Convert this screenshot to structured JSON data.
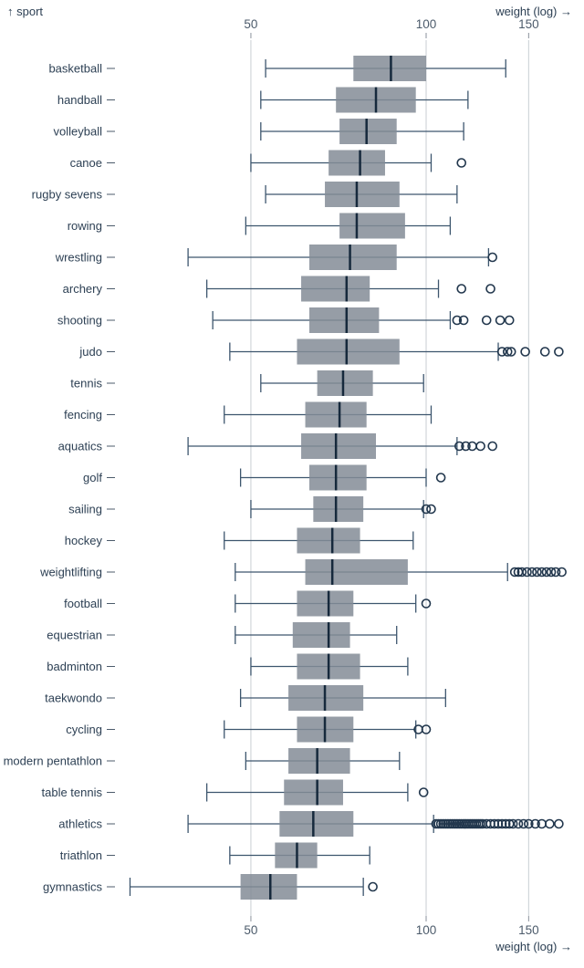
{
  "chart": {
    "y_axis_label": "↑ sport",
    "x_axis_label_top": "weight (log) →",
    "x_axis_label_bottom": "weight (log) →"
  },
  "colors": {
    "box_fill": "#848c96",
    "median": "#16293c",
    "whisker": "#3d566e",
    "outlier": "#22374d",
    "grid": "#c9ced3",
    "tick_mark": "#8a929b",
    "tick_text": "#4c5b6b",
    "label_text": "#2d4054"
  },
  "chart_data": {
    "type": "boxplot",
    "orientation": "horizontal",
    "xlabel": "weight (log)",
    "ylabel": "sport",
    "x_scale": "log",
    "x_ticks": [
      50,
      100,
      150
    ],
    "x_range_approx": [
      30,
      175
    ],
    "grid": true,
    "series": [
      {
        "label": "basketball",
        "whisker_min": 53,
        "q1": 75,
        "median": 87,
        "q3": 100,
        "whisker_max": 137,
        "outliers": []
      },
      {
        "label": "handball",
        "whisker_min": 52,
        "q1": 70,
        "median": 82,
        "q3": 96,
        "whisker_max": 118,
        "outliers": []
      },
      {
        "label": "volleyball",
        "whisker_min": 52,
        "q1": 71,
        "median": 79,
        "q3": 89,
        "whisker_max": 116,
        "outliers": []
      },
      {
        "label": "canoe",
        "whisker_min": 50,
        "q1": 68,
        "median": 77,
        "q3": 85,
        "whisker_max": 102,
        "outliers": [
          115
        ]
      },
      {
        "label": "rugby sevens",
        "whisker_min": 53,
        "q1": 67,
        "median": 76,
        "q3": 90,
        "whisker_max": 113,
        "outliers": []
      },
      {
        "label": "rowing",
        "whisker_min": 49,
        "q1": 71,
        "median": 76,
        "q3": 92,
        "whisker_max": 110,
        "outliers": []
      },
      {
        "label": "wrestling",
        "whisker_min": 39,
        "q1": 63,
        "median": 74,
        "q3": 89,
        "whisker_max": 128,
        "outliers": [
          130
        ]
      },
      {
        "label": "archery",
        "whisker_min": 42,
        "q1": 61,
        "median": 73,
        "q3": 80,
        "whisker_max": 105,
        "outliers": [
          115,
          129
        ]
      },
      {
        "label": "shooting",
        "whisker_min": 43,
        "q1": 63,
        "median": 73,
        "q3": 83,
        "whisker_max": 110,
        "outliers": [
          113,
          116,
          127,
          134,
          139
        ]
      },
      {
        "label": "judo",
        "whisker_min": 46,
        "q1": 60,
        "median": 73,
        "q3": 90,
        "whisker_max": 133,
        "outliers": [
          135,
          138,
          140,
          148,
          160,
          169
        ]
      },
      {
        "label": "tennis",
        "whisker_min": 52,
        "q1": 65,
        "median": 72,
        "q3": 81,
        "whisker_max": 99,
        "outliers": []
      },
      {
        "label": "fencing",
        "whisker_min": 45,
        "q1": 62,
        "median": 71,
        "q3": 79,
        "whisker_max": 102,
        "outliers": []
      },
      {
        "label": "aquatics",
        "whisker_min": 39,
        "q1": 61,
        "median": 70,
        "q3": 82,
        "whisker_max": 113,
        "outliers": [
          114,
          117,
          120,
          124,
          130
        ]
      },
      {
        "label": "golf",
        "whisker_min": 48,
        "q1": 63,
        "median": 70,
        "q3": 79,
        "whisker_max": 100,
        "outliers": [
          106
        ]
      },
      {
        "label": "sailing",
        "whisker_min": 50,
        "q1": 64,
        "median": 70,
        "q3": 78,
        "whisker_max": 99,
        "outliers": [
          100,
          102
        ]
      },
      {
        "label": "hockey",
        "whisker_min": 45,
        "q1": 60,
        "median": 69,
        "q3": 77,
        "whisker_max": 95,
        "outliers": []
      },
      {
        "label": "weightlifting",
        "whisker_min": 47,
        "q1": 62,
        "median": 69,
        "q3": 93,
        "whisker_max": 138,
        "outliers": [
          142,
          144,
          146,
          149,
          152,
          155,
          158,
          161,
          164,
          167,
          171
        ]
      },
      {
        "label": "football",
        "whisker_min": 47,
        "q1": 60,
        "median": 68,
        "q3": 75,
        "whisker_max": 96,
        "outliers": [
          100
        ]
      },
      {
        "label": "equestrian",
        "whisker_min": 47,
        "q1": 59,
        "median": 68,
        "q3": 74,
        "whisker_max": 89,
        "outliers": []
      },
      {
        "label": "badminton",
        "whisker_min": 50,
        "q1": 60,
        "median": 68,
        "q3": 77,
        "whisker_max": 93,
        "outliers": []
      },
      {
        "label": "taekwondo",
        "whisker_min": 48,
        "q1": 58,
        "median": 67,
        "q3": 78,
        "whisker_max": 108,
        "outliers": []
      },
      {
        "label": "cycling",
        "whisker_min": 45,
        "q1": 60,
        "median": 67,
        "q3": 75,
        "whisker_max": 96,
        "outliers": [
          97,
          100
        ]
      },
      {
        "label": "modern pentathlon",
        "whisker_min": 49,
        "q1": 58,
        "median": 65,
        "q3": 74,
        "whisker_max": 90,
        "outliers": []
      },
      {
        "label": "table tennis",
        "whisker_min": 42,
        "q1": 57,
        "median": 65,
        "q3": 72,
        "whisker_max": 93,
        "outliers": [
          99
        ]
      },
      {
        "label": "athletics",
        "whisker_min": 39,
        "q1": 56,
        "median": 64,
        "q3": 75,
        "whisker_max": 103,
        "outliers": [
          104,
          105,
          106,
          107,
          108,
          109,
          110,
          111,
          112,
          113,
          114,
          115,
          116,
          117,
          118,
          119,
          120,
          121,
          122,
          123,
          124,
          125,
          127,
          129,
          131,
          133,
          135,
          137,
          139,
          141,
          144,
          147,
          150,
          154,
          158,
          163,
          169
        ]
      },
      {
        "label": "triathlon",
        "whisker_min": 46,
        "q1": 55,
        "median": 60,
        "q3": 65,
        "whisker_max": 80,
        "outliers": []
      },
      {
        "label": "gymnastics",
        "whisker_min": 31,
        "q1": 48,
        "median": 54,
        "q3": 60,
        "whisker_max": 78,
        "outliers": [
          81
        ]
      }
    ]
  }
}
